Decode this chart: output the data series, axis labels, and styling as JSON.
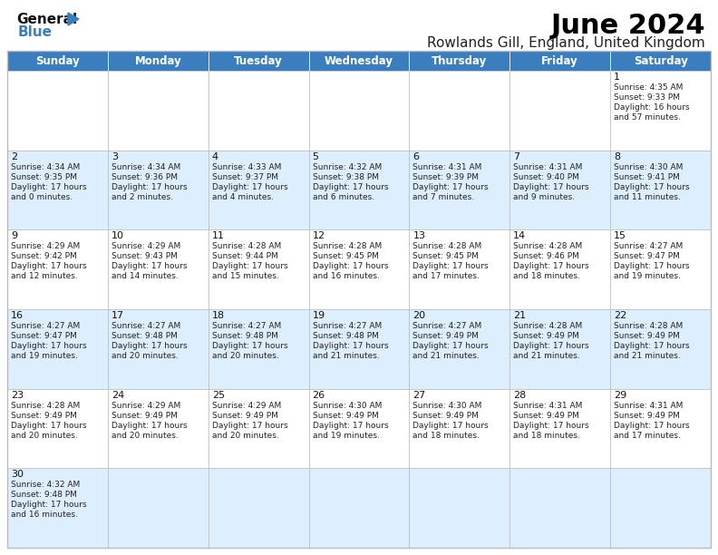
{
  "title": "June 2024",
  "subtitle": "Rowlands Gill, England, United Kingdom",
  "days_of_week": [
    "Sunday",
    "Monday",
    "Tuesday",
    "Wednesday",
    "Thursday",
    "Friday",
    "Saturday"
  ],
  "header_color": "#3a7ebf",
  "header_text_color": "#FFFFFF",
  "alt_row_color": "#ddeeff",
  "white_row_color": "#FFFFFF",
  "border_color": "#bbbbbb",
  "title_color": "#000000",
  "subtitle_color": "#222222",
  "day_number_color": "#111111",
  "cell_text_color": "#222222",
  "background_color": "#FFFFFF",
  "logo_black": "#111111",
  "logo_blue": "#3a7ebf",
  "calendar_data": [
    {
      "day": 1,
      "weekday": 6,
      "sunrise": "4:35 AM",
      "sunset": "9:33 PM",
      "daylight_h": "16 hours",
      "daylight_m": "and 57 minutes."
    },
    {
      "day": 2,
      "weekday": 0,
      "sunrise": "4:34 AM",
      "sunset": "9:35 PM",
      "daylight_h": "17 hours",
      "daylight_m": "and 0 minutes."
    },
    {
      "day": 3,
      "weekday": 1,
      "sunrise": "4:34 AM",
      "sunset": "9:36 PM",
      "daylight_h": "17 hours",
      "daylight_m": "and 2 minutes."
    },
    {
      "day": 4,
      "weekday": 2,
      "sunrise": "4:33 AM",
      "sunset": "9:37 PM",
      "daylight_h": "17 hours",
      "daylight_m": "and 4 minutes."
    },
    {
      "day": 5,
      "weekday": 3,
      "sunrise": "4:32 AM",
      "sunset": "9:38 PM",
      "daylight_h": "17 hours",
      "daylight_m": "and 6 minutes."
    },
    {
      "day": 6,
      "weekday": 4,
      "sunrise": "4:31 AM",
      "sunset": "9:39 PM",
      "daylight_h": "17 hours",
      "daylight_m": "and 7 minutes."
    },
    {
      "day": 7,
      "weekday": 5,
      "sunrise": "4:31 AM",
      "sunset": "9:40 PM",
      "daylight_h": "17 hours",
      "daylight_m": "and 9 minutes."
    },
    {
      "day": 8,
      "weekday": 6,
      "sunrise": "4:30 AM",
      "sunset": "9:41 PM",
      "daylight_h": "17 hours",
      "daylight_m": "and 11 minutes."
    },
    {
      "day": 9,
      "weekday": 0,
      "sunrise": "4:29 AM",
      "sunset": "9:42 PM",
      "daylight_h": "17 hours",
      "daylight_m": "and 12 minutes."
    },
    {
      "day": 10,
      "weekday": 1,
      "sunrise": "4:29 AM",
      "sunset": "9:43 PM",
      "daylight_h": "17 hours",
      "daylight_m": "and 14 minutes."
    },
    {
      "day": 11,
      "weekday": 2,
      "sunrise": "4:28 AM",
      "sunset": "9:44 PM",
      "daylight_h": "17 hours",
      "daylight_m": "and 15 minutes."
    },
    {
      "day": 12,
      "weekday": 3,
      "sunrise": "4:28 AM",
      "sunset": "9:45 PM",
      "daylight_h": "17 hours",
      "daylight_m": "and 16 minutes."
    },
    {
      "day": 13,
      "weekday": 4,
      "sunrise": "4:28 AM",
      "sunset": "9:45 PM",
      "daylight_h": "17 hours",
      "daylight_m": "and 17 minutes."
    },
    {
      "day": 14,
      "weekday": 5,
      "sunrise": "4:28 AM",
      "sunset": "9:46 PM",
      "daylight_h": "17 hours",
      "daylight_m": "and 18 minutes."
    },
    {
      "day": 15,
      "weekday": 6,
      "sunrise": "4:27 AM",
      "sunset": "9:47 PM",
      "daylight_h": "17 hours",
      "daylight_m": "and 19 minutes."
    },
    {
      "day": 16,
      "weekday": 0,
      "sunrise": "4:27 AM",
      "sunset": "9:47 PM",
      "daylight_h": "17 hours",
      "daylight_m": "and 19 minutes."
    },
    {
      "day": 17,
      "weekday": 1,
      "sunrise": "4:27 AM",
      "sunset": "9:48 PM",
      "daylight_h": "17 hours",
      "daylight_m": "and 20 minutes."
    },
    {
      "day": 18,
      "weekday": 2,
      "sunrise": "4:27 AM",
      "sunset": "9:48 PM",
      "daylight_h": "17 hours",
      "daylight_m": "and 20 minutes."
    },
    {
      "day": 19,
      "weekday": 3,
      "sunrise": "4:27 AM",
      "sunset": "9:48 PM",
      "daylight_h": "17 hours",
      "daylight_m": "and 21 minutes."
    },
    {
      "day": 20,
      "weekday": 4,
      "sunrise": "4:27 AM",
      "sunset": "9:49 PM",
      "daylight_h": "17 hours",
      "daylight_m": "and 21 minutes."
    },
    {
      "day": 21,
      "weekday": 5,
      "sunrise": "4:28 AM",
      "sunset": "9:49 PM",
      "daylight_h": "17 hours",
      "daylight_m": "and 21 minutes."
    },
    {
      "day": 22,
      "weekday": 6,
      "sunrise": "4:28 AM",
      "sunset": "9:49 PM",
      "daylight_h": "17 hours",
      "daylight_m": "and 21 minutes."
    },
    {
      "day": 23,
      "weekday": 0,
      "sunrise": "4:28 AM",
      "sunset": "9:49 PM",
      "daylight_h": "17 hours",
      "daylight_m": "and 20 minutes."
    },
    {
      "day": 24,
      "weekday": 1,
      "sunrise": "4:29 AM",
      "sunset": "9:49 PM",
      "daylight_h": "17 hours",
      "daylight_m": "and 20 minutes."
    },
    {
      "day": 25,
      "weekday": 2,
      "sunrise": "4:29 AM",
      "sunset": "9:49 PM",
      "daylight_h": "17 hours",
      "daylight_m": "and 20 minutes."
    },
    {
      "day": 26,
      "weekday": 3,
      "sunrise": "4:30 AM",
      "sunset": "9:49 PM",
      "daylight_h": "17 hours",
      "daylight_m": "and 19 minutes."
    },
    {
      "day": 27,
      "weekday": 4,
      "sunrise": "4:30 AM",
      "sunset": "9:49 PM",
      "daylight_h": "17 hours",
      "daylight_m": "and 18 minutes."
    },
    {
      "day": 28,
      "weekday": 5,
      "sunrise": "4:31 AM",
      "sunset": "9:49 PM",
      "daylight_h": "17 hours",
      "daylight_m": "and 18 minutes."
    },
    {
      "day": 29,
      "weekday": 6,
      "sunrise": "4:31 AM",
      "sunset": "9:49 PM",
      "daylight_h": "17 hours",
      "daylight_m": "and 17 minutes."
    },
    {
      "day": 30,
      "weekday": 0,
      "sunrise": "4:32 AM",
      "sunset": "9:48 PM",
      "daylight_h": "17 hours",
      "daylight_m": "and 16 minutes."
    }
  ]
}
